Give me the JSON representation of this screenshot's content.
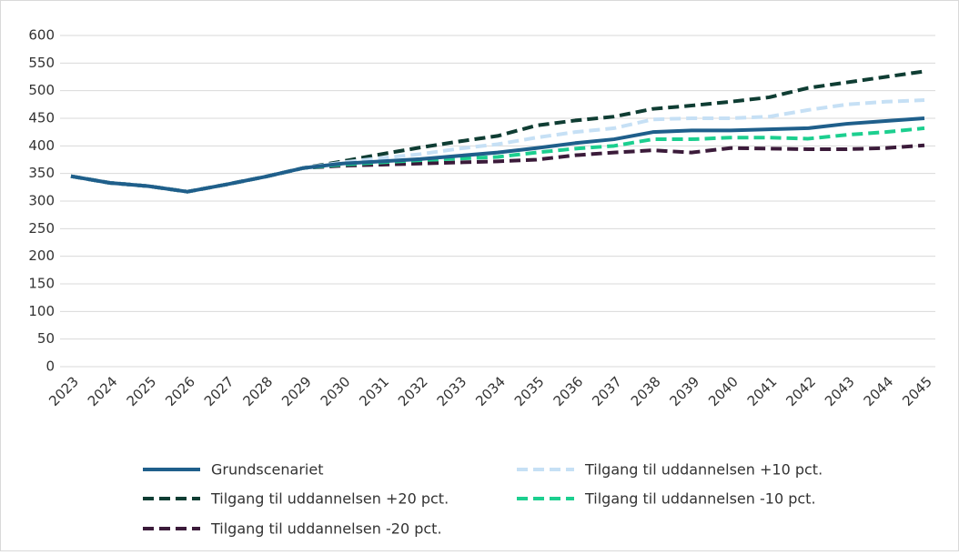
{
  "chart_data": {
    "type": "line",
    "categories": [
      "2023",
      "2024",
      "2025",
      "2026",
      "2027",
      "2028",
      "2029",
      "2030",
      "2031",
      "2032",
      "2033",
      "2034",
      "2035",
      "2036",
      "2037",
      "2038",
      "2039",
      "2040",
      "2041",
      "2042",
      "2043",
      "2044",
      "2045"
    ],
    "ylim": [
      0,
      600
    ],
    "yticks": [
      0,
      50,
      100,
      150,
      200,
      250,
      300,
      350,
      400,
      450,
      500,
      550,
      600
    ],
    "grid": true,
    "series": [
      {
        "name": "Grundscenariet",
        "color": "#1f5f8b",
        "dashed": false,
        "values": [
          345,
          333,
          327,
          317,
          330,
          344,
          360,
          368,
          372,
          376,
          382,
          388,
          396,
          405,
          412,
          425,
          428,
          428,
          430,
          432,
          440,
          445,
          450
        ]
      },
      {
        "name": "Tilgang til uddannelsen +10 pct.",
        "color": "#c6e0f5",
        "dashed": true,
        "values": [
          345,
          333,
          327,
          317,
          330,
          344,
          360,
          370,
          378,
          385,
          395,
          403,
          415,
          425,
          432,
          448,
          450,
          450,
          453,
          465,
          475,
          480,
          483
        ]
      },
      {
        "name": "Tilgang til uddannelsen +20 pct.",
        "color": "#0f3d33",
        "dashed": true,
        "values": [
          345,
          333,
          327,
          317,
          330,
          344,
          360,
          372,
          385,
          397,
          408,
          418,
          437,
          446,
          453,
          467,
          473,
          480,
          488,
          505,
          515,
          525,
          535
        ]
      },
      {
        "name": "Tilgang til uddannelsen -10 pct.",
        "color": "#1ccf8f",
        "dashed": true,
        "values": [
          345,
          333,
          327,
          317,
          330,
          344,
          360,
          366,
          370,
          374,
          377,
          380,
          388,
          395,
          400,
          412,
          412,
          415,
          415,
          413,
          420,
          425,
          432
        ]
      },
      {
        "name": "Tilgang til uddannelsen -20 pct.",
        "color": "#3b1b3a",
        "dashed": true,
        "values": [
          345,
          333,
          327,
          317,
          330,
          344,
          360,
          364,
          366,
          368,
          370,
          372,
          375,
          383,
          388,
          392,
          388,
          396,
          395,
          394,
          394,
          396,
          401
        ]
      }
    ]
  }
}
